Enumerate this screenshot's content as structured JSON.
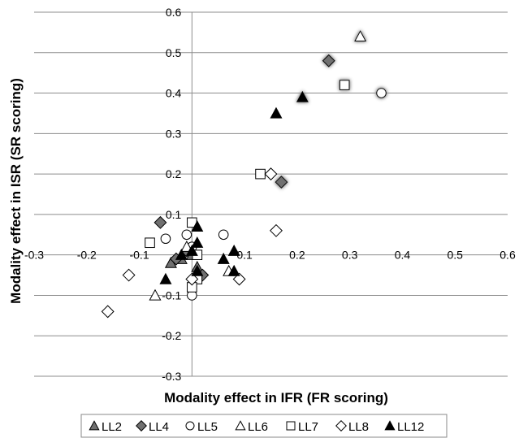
{
  "chart_data": {
    "type": "scatter",
    "title": "",
    "xlabel": "Modality effect in IFR (FR scoring)",
    "ylabel": "Modality effect in ISR (SR scoring)",
    "xlim": [
      -0.3,
      0.6
    ],
    "ylim": [
      -0.3,
      0.6
    ],
    "x_ticks": [
      -0.3,
      -0.2,
      -0.1,
      0,
      0.1,
      0.2,
      0.3,
      0.4,
      0.5,
      0.6
    ],
    "y_ticks": [
      -0.3,
      -0.2,
      -0.1,
      0,
      0.1,
      0.2,
      0.3,
      0.4,
      0.5,
      0.6
    ],
    "x_tick_labels": [
      "-0.3",
      "-0.2",
      "-0.1",
      "0",
      "0.1",
      "0.2",
      "0.3",
      "0.4",
      "0.5",
      "0.6"
    ],
    "y_tick_labels": [
      "-0.3",
      "-0.2",
      "-0.1",
      "",
      "0.1",
      "0.2",
      "0.3",
      "0.4",
      "0.5",
      "0.6"
    ],
    "grid": "horizontal",
    "legend_position": "bottom",
    "series": [
      {
        "name": "LL2",
        "marker": "triangle",
        "fill": "#707070",
        "points": [
          [
            -0.04,
            -0.02
          ],
          [
            -0.02,
            -0.01
          ],
          [
            -0.01,
            0.01
          ],
          [
            0.0,
            0.0
          ],
          [
            0.01,
            -0.03
          ]
        ],
        "highlight": []
      },
      {
        "name": "LL4",
        "marker": "diamond",
        "fill": "#707070",
        "points": [
          [
            -0.06,
            0.08
          ],
          [
            -0.03,
            -0.01
          ],
          [
            -0.01,
            0.01
          ],
          [
            0.02,
            -0.05
          ],
          [
            0.17,
            0.18
          ],
          [
            0.26,
            0.48
          ]
        ],
        "highlight": [
          4,
          5
        ]
      },
      {
        "name": "LL5",
        "marker": "circle",
        "fill": "#ffffff",
        "points": [
          [
            -0.05,
            0.04
          ],
          [
            -0.01,
            0.05
          ],
          [
            0.0,
            0.02
          ],
          [
            0.0,
            -0.1
          ],
          [
            0.06,
            0.05
          ],
          [
            0.36,
            0.4
          ]
        ],
        "highlight": [
          5
        ]
      },
      {
        "name": "LL6",
        "marker": "triangle",
        "fill": "#ffffff",
        "points": [
          [
            -0.07,
            -0.1
          ],
          [
            -0.01,
            0.02
          ],
          [
            0.07,
            -0.04
          ],
          [
            0.32,
            0.54
          ]
        ],
        "highlight": [
          3
        ]
      },
      {
        "name": "LL7",
        "marker": "square",
        "fill": "#ffffff",
        "points": [
          [
            -0.08,
            0.03
          ],
          [
            0.0,
            0.08
          ],
          [
            0.01,
            0.0
          ],
          [
            0.01,
            -0.06
          ],
          [
            0.0,
            -0.08
          ],
          [
            0.13,
            0.2
          ],
          [
            0.29,
            0.42
          ]
        ],
        "highlight": [
          6
        ]
      },
      {
        "name": "LL8",
        "marker": "diamond",
        "fill": "#ffffff",
        "points": [
          [
            -0.16,
            -0.14
          ],
          [
            -0.12,
            -0.05
          ],
          [
            0.0,
            -0.06
          ],
          [
            0.09,
            -0.06
          ],
          [
            0.15,
            0.2
          ],
          [
            0.16,
            0.06
          ]
        ],
        "highlight": []
      },
      {
        "name": "LL12",
        "marker": "triangle",
        "fill": "#000000",
        "points": [
          [
            -0.05,
            -0.06
          ],
          [
            -0.02,
            0.0
          ],
          [
            0.0,
            0.01
          ],
          [
            0.01,
            0.03
          ],
          [
            0.01,
            0.07
          ],
          [
            0.01,
            -0.04
          ],
          [
            0.06,
            -0.01
          ],
          [
            0.08,
            0.01
          ],
          [
            0.08,
            -0.04
          ],
          [
            0.16,
            0.35
          ],
          [
            0.21,
            0.39
          ]
        ],
        "highlight": [
          10
        ]
      }
    ]
  }
}
